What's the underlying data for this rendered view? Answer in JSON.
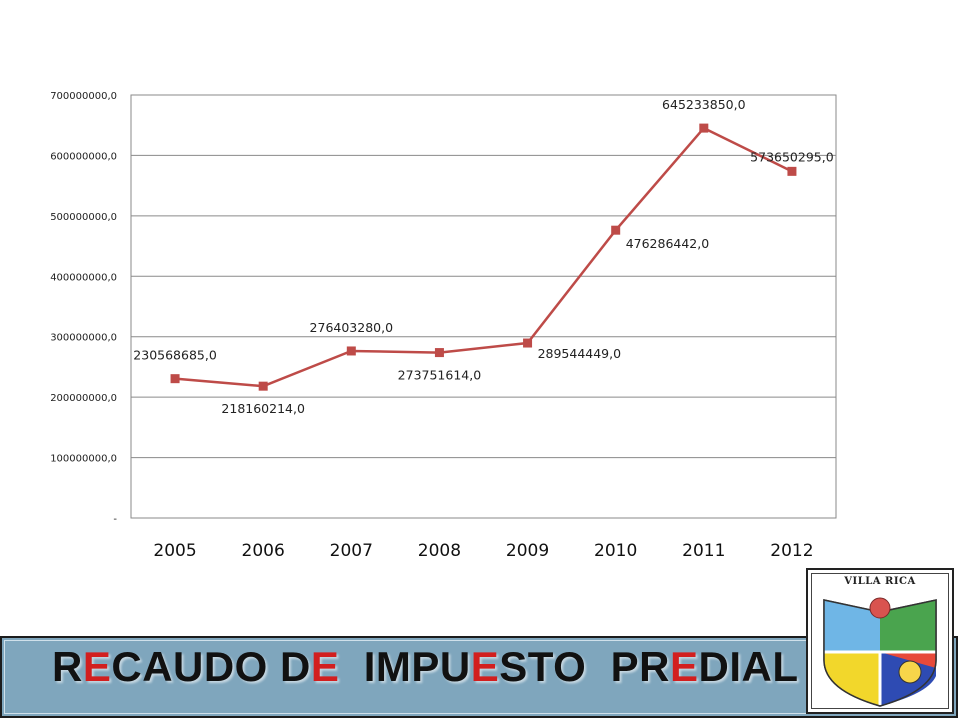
{
  "chart_data": {
    "type": "line",
    "categories": [
      "2005",
      "2006",
      "2007",
      "2008",
      "2009",
      "2010",
      "2011",
      "2012"
    ],
    "values": [
      230568685,
      218160214,
      276403280,
      273751614,
      289544449,
      476286442,
      645233850,
      573650295
    ],
    "data_labels": [
      "230568685,0",
      "218160214,0",
      "276403280,0",
      "273751614,0",
      "289544449,0",
      "476286442,0",
      "645233850,0",
      "573650295,0"
    ],
    "y_ticks": [
      "-",
      "100000000,0",
      "200000000,0",
      "300000000,0",
      "400000000,0",
      "500000000,0",
      "600000000,0",
      "700000000,0"
    ],
    "ylim": [
      0,
      700000000
    ],
    "grid": true,
    "legend": "none",
    "series_color": "#be4b48"
  },
  "title": {
    "segments": [
      {
        "text": "R",
        "red": false
      },
      {
        "text": "E",
        "red": true
      },
      {
        "text": "CAUDO D",
        "red": false
      },
      {
        "text": "E",
        "red": true
      },
      {
        "text": "  IMPU",
        "red": false
      },
      {
        "text": "E",
        "red": true
      },
      {
        "text": "STO  PR",
        "red": false
      },
      {
        "text": "E",
        "red": true
      },
      {
        "text": "DIAL",
        "red": false
      }
    ]
  },
  "logo": {
    "text": "VILLA RICA"
  },
  "colors": {
    "title_bar": "#7fa6bd",
    "title_red": "#d21f1f"
  }
}
